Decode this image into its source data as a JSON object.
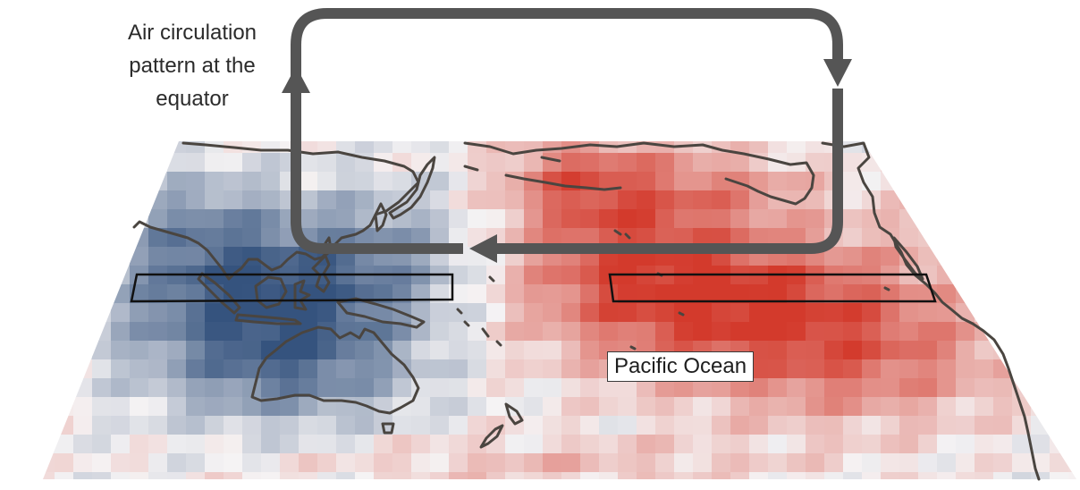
{
  "annotation": {
    "lines": [
      "Air circulation",
      "pattern at the",
      "equator"
    ]
  },
  "labels": {
    "ocean": "Pacific Ocean"
  },
  "colors": {
    "warm": "#d33a2c",
    "cool": "#35537e",
    "neutral": "#f5f3f4",
    "arrow": "#555555",
    "coastline": "#4a4540",
    "box": "#111111"
  },
  "legend": [],
  "regions": {
    "western_box": "cool",
    "eastern_box": "warm"
  }
}
